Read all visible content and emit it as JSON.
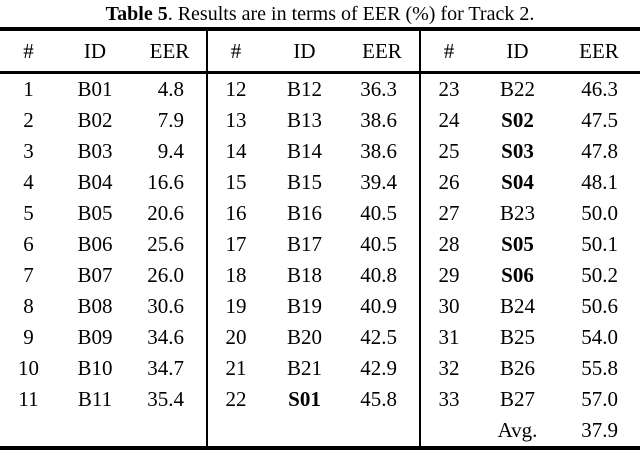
{
  "title": {
    "bold": "Table 5",
    "rest": ". Results are in terms of EER (%) for Track 2."
  },
  "table": {
    "headers": [
      "#",
      "ID",
      "EER"
    ],
    "bold_ids": [
      "S01",
      "S02",
      "S03",
      "S04",
      "S05",
      "S06"
    ],
    "avg_label": "Avg.",
    "avg_value": "37.9",
    "rows": [
      [
        [
          "1",
          "B01",
          "4.8"
        ],
        [
          "12",
          "B12",
          "36.3"
        ],
        [
          "23",
          "B22",
          "46.3"
        ]
      ],
      [
        [
          "2",
          "B02",
          "7.9"
        ],
        [
          "13",
          "B13",
          "38.6"
        ],
        [
          "24",
          "S02",
          "47.5"
        ]
      ],
      [
        [
          "3",
          "B03",
          "9.4"
        ],
        [
          "14",
          "B14",
          "38.6"
        ],
        [
          "25",
          "S03",
          "47.8"
        ]
      ],
      [
        [
          "4",
          "B04",
          "16.6"
        ],
        [
          "15",
          "B15",
          "39.4"
        ],
        [
          "26",
          "S04",
          "48.1"
        ]
      ],
      [
        [
          "5",
          "B05",
          "20.6"
        ],
        [
          "16",
          "B16",
          "40.5"
        ],
        [
          "27",
          "B23",
          "50.0"
        ]
      ],
      [
        [
          "6",
          "B06",
          "25.6"
        ],
        [
          "17",
          "B17",
          "40.5"
        ],
        [
          "28",
          "S05",
          "50.1"
        ]
      ],
      [
        [
          "7",
          "B07",
          "26.0"
        ],
        [
          "18",
          "B18",
          "40.8"
        ],
        [
          "29",
          "S06",
          "50.2"
        ]
      ],
      [
        [
          "8",
          "B08",
          "30.6"
        ],
        [
          "19",
          "B19",
          "40.9"
        ],
        [
          "30",
          "B24",
          "50.6"
        ]
      ],
      [
        [
          "9",
          "B09",
          "34.6"
        ],
        [
          "20",
          "B20",
          "42.5"
        ],
        [
          "31",
          "B25",
          "54.0"
        ]
      ],
      [
        [
          "10",
          "B10",
          "34.7"
        ],
        [
          "21",
          "B21",
          "42.9"
        ],
        [
          "32",
          "B26",
          "55.8"
        ]
      ],
      [
        [
          "11",
          "B11",
          "35.4"
        ],
        [
          "22",
          "S01",
          "45.8"
        ],
        [
          "33",
          "B27",
          "57.0"
        ]
      ],
      [
        [
          "",
          "",
          ""
        ],
        [
          "",
          "",
          ""
        ],
        [
          "",
          "Avg.",
          "37.9"
        ]
      ]
    ]
  }
}
